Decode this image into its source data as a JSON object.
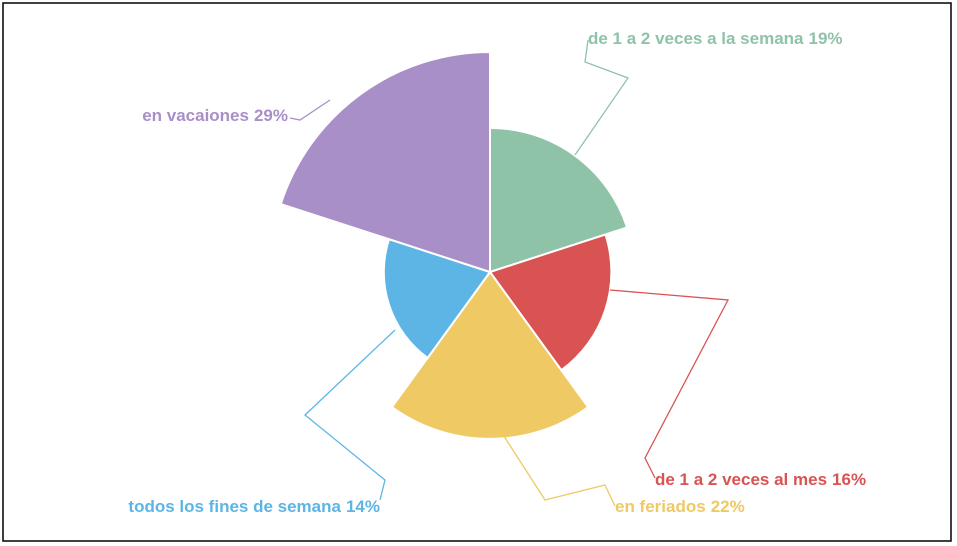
{
  "chart_data": {
    "type": "rose",
    "categories": [
      "de 1 a 2 veces a la semana",
      "de 1 a 2 veces al mes",
      "en feriados",
      "todos los fines de semana",
      "en vacaiones"
    ],
    "values": [
      19,
      16,
      22,
      14,
      29
    ],
    "value_labels": [
      "19%",
      "16%",
      "22%",
      "14%",
      "29%"
    ],
    "colors": [
      "#8fc3a8",
      "#d95353",
      "#eec964",
      "#5db5e5",
      "#a98fc7"
    ]
  }
}
